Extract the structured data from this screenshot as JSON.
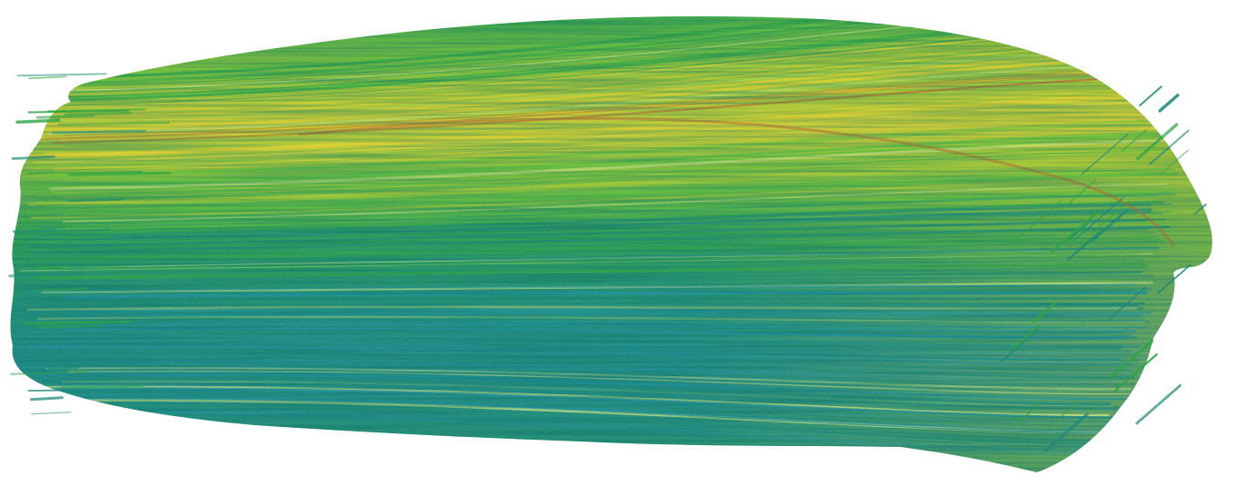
{
  "image": {
    "subject": "brush-stroke",
    "background_color": "#ffffff",
    "palette": {
      "deep_teal": "#1f8a78",
      "teal_blue": "#1c8fa0",
      "green": "#2fa446",
      "bright_green": "#5fbf3a",
      "yellow_green": "#a8c832",
      "yellow": "#dccf2e",
      "rust": "#b86a2e",
      "pale_highlight": "#c9e07a"
    }
  }
}
